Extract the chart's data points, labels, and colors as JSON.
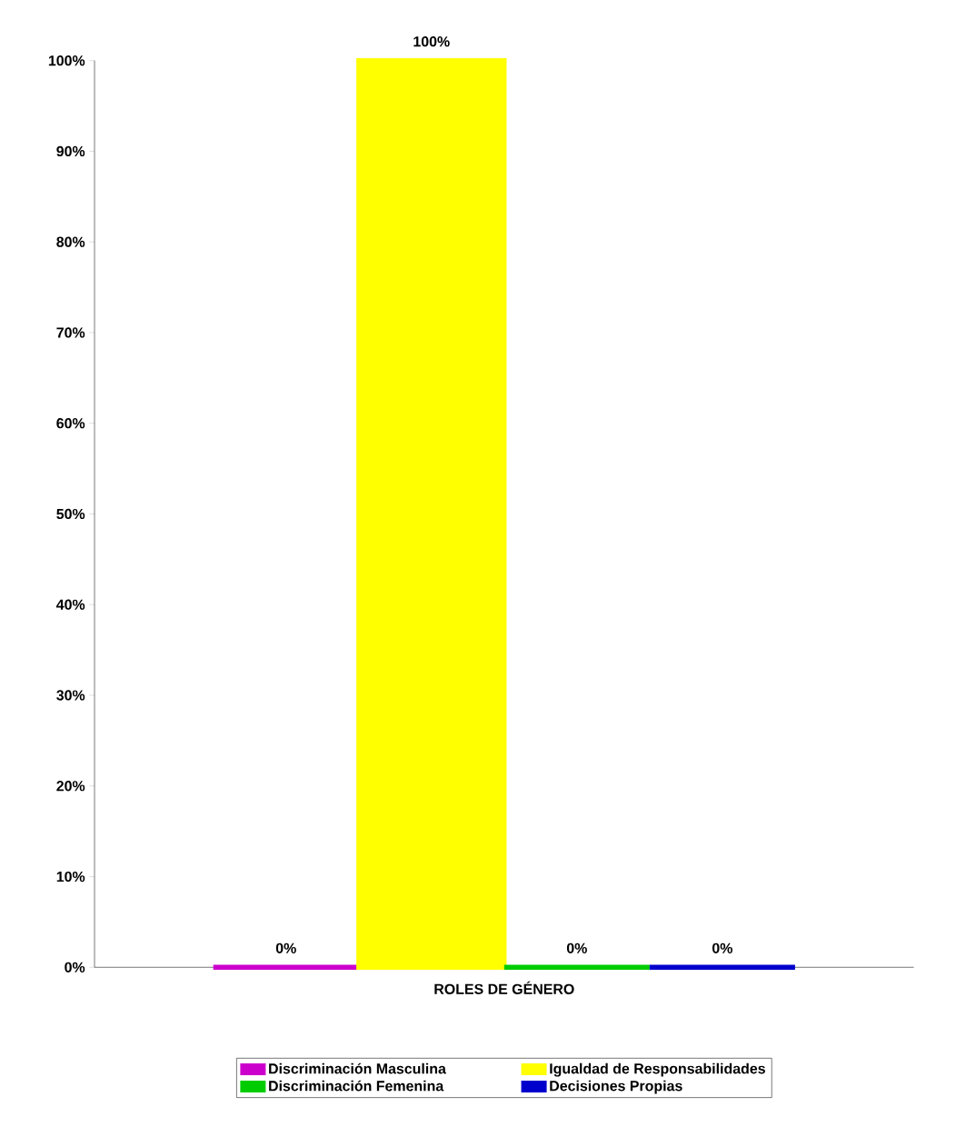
{
  "chart_data": {
    "type": "bar",
    "xlabel": "ROLES DE GÉNERO",
    "categories": [
      null
    ],
    "series": [
      {
        "name": "Discriminación Masculina",
        "color": "#cc00cc",
        "values": [
          0
        ],
        "value_labels": [
          "0%"
        ]
      },
      {
        "name": "Igualdad de Responsabilidades",
        "color": "#ffff00",
        "values": [
          100
        ],
        "value_labels": [
          "100%"
        ]
      },
      {
        "name": "Discriminación Femenina",
        "color": "#00cc00",
        "values": [
          0
        ],
        "value_labels": [
          "0%"
        ]
      },
      {
        "name": "Decisiones Propias",
        "color": "#0000cc",
        "values": [
          0
        ],
        "value_labels": [
          "0%"
        ]
      }
    ],
    "ylim": [
      0,
      100
    ],
    "yticks": [
      {
        "value": 0,
        "label": "0%"
      },
      {
        "value": 10,
        "label": "10%"
      },
      {
        "value": 20,
        "label": "20%"
      },
      {
        "value": 30,
        "label": "30%"
      },
      {
        "value": 40,
        "label": "40%"
      },
      {
        "value": 50,
        "label": "50%"
      },
      {
        "value": 60,
        "label": "60%"
      },
      {
        "value": 70,
        "label": "70%"
      },
      {
        "value": 80,
        "label": "80%"
      },
      {
        "value": 90,
        "label": "90%"
      },
      {
        "value": 100,
        "label": "100%"
      }
    ],
    "legend": "bottom"
  }
}
